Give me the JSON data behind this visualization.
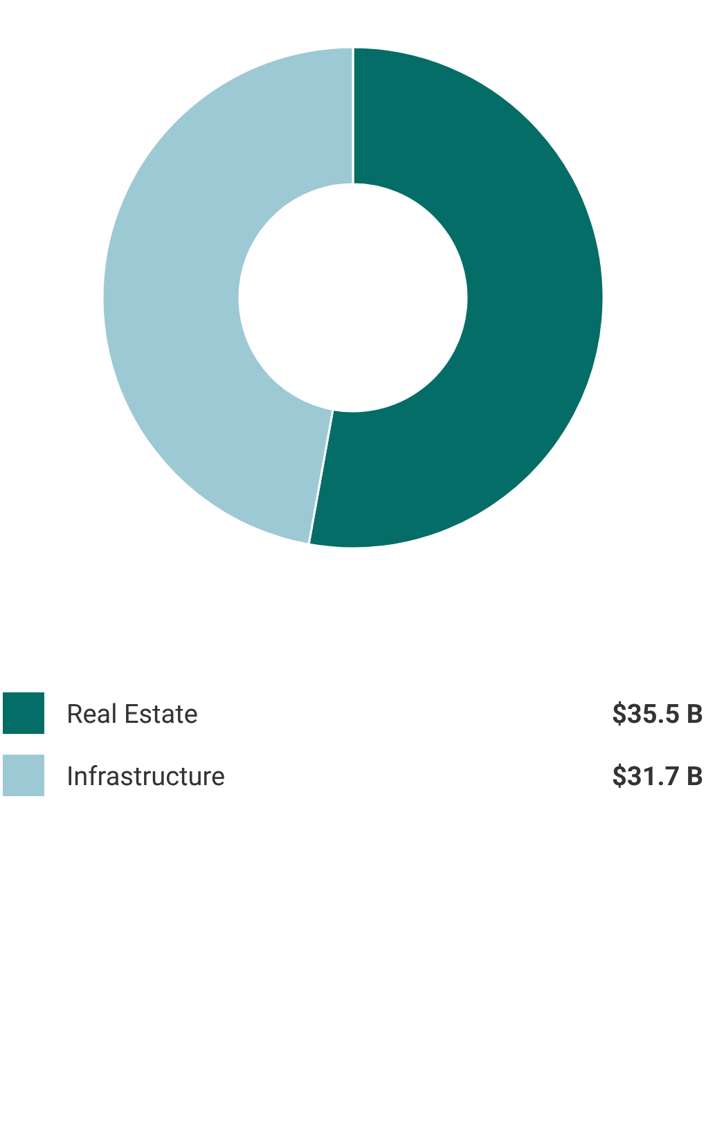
{
  "chart_data": {
    "type": "donut",
    "categories": [
      "Real Estate",
      "Infrastructure"
    ],
    "values": [
      35.5,
      31.7
    ],
    "colors": [
      "#056d67",
      "#9dc9d4"
    ],
    "value_labels": [
      "$35.5 B",
      "$31.7 B"
    ],
    "legend": "bottom"
  }
}
